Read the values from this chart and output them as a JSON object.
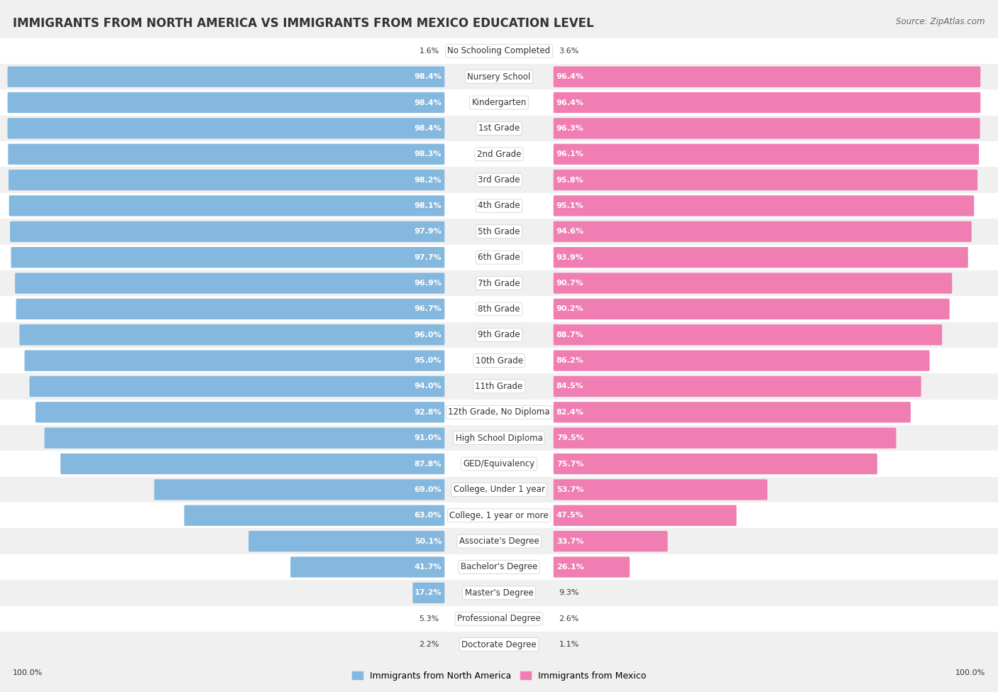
{
  "title": "IMMIGRANTS FROM NORTH AMERICA VS IMMIGRANTS FROM MEXICO EDUCATION LEVEL",
  "source": "Source: ZipAtlas.com",
  "categories": [
    "No Schooling Completed",
    "Nursery School",
    "Kindergarten",
    "1st Grade",
    "2nd Grade",
    "3rd Grade",
    "4th Grade",
    "5th Grade",
    "6th Grade",
    "7th Grade",
    "8th Grade",
    "9th Grade",
    "10th Grade",
    "11th Grade",
    "12th Grade, No Diploma",
    "High School Diploma",
    "GED/Equivalency",
    "College, Under 1 year",
    "College, 1 year or more",
    "Associate's Degree",
    "Bachelor's Degree",
    "Master's Degree",
    "Professional Degree",
    "Doctorate Degree"
  ],
  "north_america": [
    1.6,
    98.4,
    98.4,
    98.4,
    98.3,
    98.2,
    98.1,
    97.9,
    97.7,
    96.9,
    96.7,
    96.0,
    95.0,
    94.0,
    92.8,
    91.0,
    87.8,
    69.0,
    63.0,
    50.1,
    41.7,
    17.2,
    5.3,
    2.2
  ],
  "mexico": [
    3.6,
    96.4,
    96.4,
    96.3,
    96.1,
    95.8,
    95.1,
    94.6,
    93.9,
    90.7,
    90.2,
    88.7,
    86.2,
    84.5,
    82.4,
    79.5,
    75.7,
    53.7,
    47.5,
    33.7,
    26.1,
    9.3,
    2.6,
    1.1
  ],
  "north_america_color": "#85B8DE",
  "mexico_color": "#F07EB2",
  "background_color": "#F0F0F0",
  "row_colors": [
    "#FFFFFF",
    "#F0F0F0"
  ],
  "title_fontsize": 12,
  "label_fontsize": 8.5,
  "value_fontsize": 8,
  "legend_fontsize": 9,
  "source_fontsize": 8.5
}
